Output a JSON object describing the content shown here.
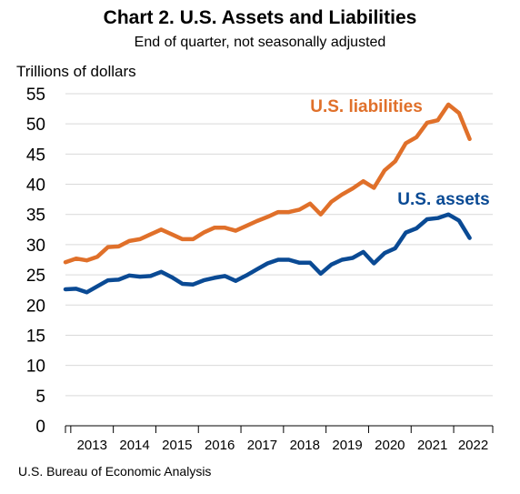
{
  "chart_data": {
    "type": "line",
    "title": "Chart 2. U.S. Assets and Liabilities",
    "subtitle": "End of quarter, not seasonally adjusted",
    "ylabel": "Trillions of dollars",
    "xlabel": "",
    "ylim": [
      0,
      55
    ],
    "yticks": [
      0,
      5,
      10,
      15,
      20,
      25,
      30,
      35,
      40,
      45,
      50,
      55
    ],
    "x_tick_labels": [
      "2013",
      "2014",
      "2015",
      "2016",
      "2017",
      "2018",
      "2019",
      "2020",
      "2021",
      "2022"
    ],
    "x_quarters": [
      "2012Q4",
      "2013Q1",
      "2013Q2",
      "2013Q3",
      "2013Q4",
      "2014Q1",
      "2014Q2",
      "2014Q3",
      "2014Q4",
      "2015Q1",
      "2015Q2",
      "2015Q3",
      "2015Q4",
      "2016Q1",
      "2016Q2",
      "2016Q3",
      "2016Q4",
      "2017Q1",
      "2017Q2",
      "2017Q3",
      "2017Q4",
      "2018Q1",
      "2018Q2",
      "2018Q3",
      "2018Q4",
      "2019Q1",
      "2019Q2",
      "2019Q3",
      "2019Q4",
      "2020Q1",
      "2020Q2",
      "2020Q3",
      "2020Q4",
      "2021Q1",
      "2021Q2",
      "2021Q3",
      "2021Q4",
      "2022Q1",
      "2022Q2"
    ],
    "grid": true,
    "series": [
      {
        "name": "U.S. liabilities",
        "color": "#e0702a",
        "values": [
          27.1,
          27.7,
          27.4,
          28.0,
          29.6,
          29.7,
          30.6,
          30.9,
          31.7,
          32.5,
          31.7,
          30.9,
          30.9,
          32.0,
          32.8,
          32.8,
          32.3,
          33.1,
          33.9,
          34.6,
          35.4,
          35.4,
          35.8,
          36.8,
          35.0,
          37.1,
          38.3,
          39.3,
          40.5,
          39.4,
          42.3,
          43.8,
          46.8,
          47.8,
          50.2,
          50.6,
          53.2,
          51.8,
          47.5
        ]
      },
      {
        "name": "U.S. assets",
        "color": "#0a4a94",
        "values": [
          22.6,
          22.7,
          22.1,
          23.1,
          24.1,
          24.2,
          24.9,
          24.7,
          24.8,
          25.5,
          24.6,
          23.5,
          23.4,
          24.1,
          24.5,
          24.8,
          24.0,
          24.9,
          25.9,
          26.9,
          27.5,
          27.5,
          27.0,
          27.0,
          25.2,
          26.7,
          27.5,
          27.8,
          28.8,
          26.9,
          28.6,
          29.4,
          32.0,
          32.7,
          34.2,
          34.4,
          35.0,
          34.0,
          31.1
        ]
      }
    ]
  },
  "source": "U.S. Bureau of Economic Analysis"
}
